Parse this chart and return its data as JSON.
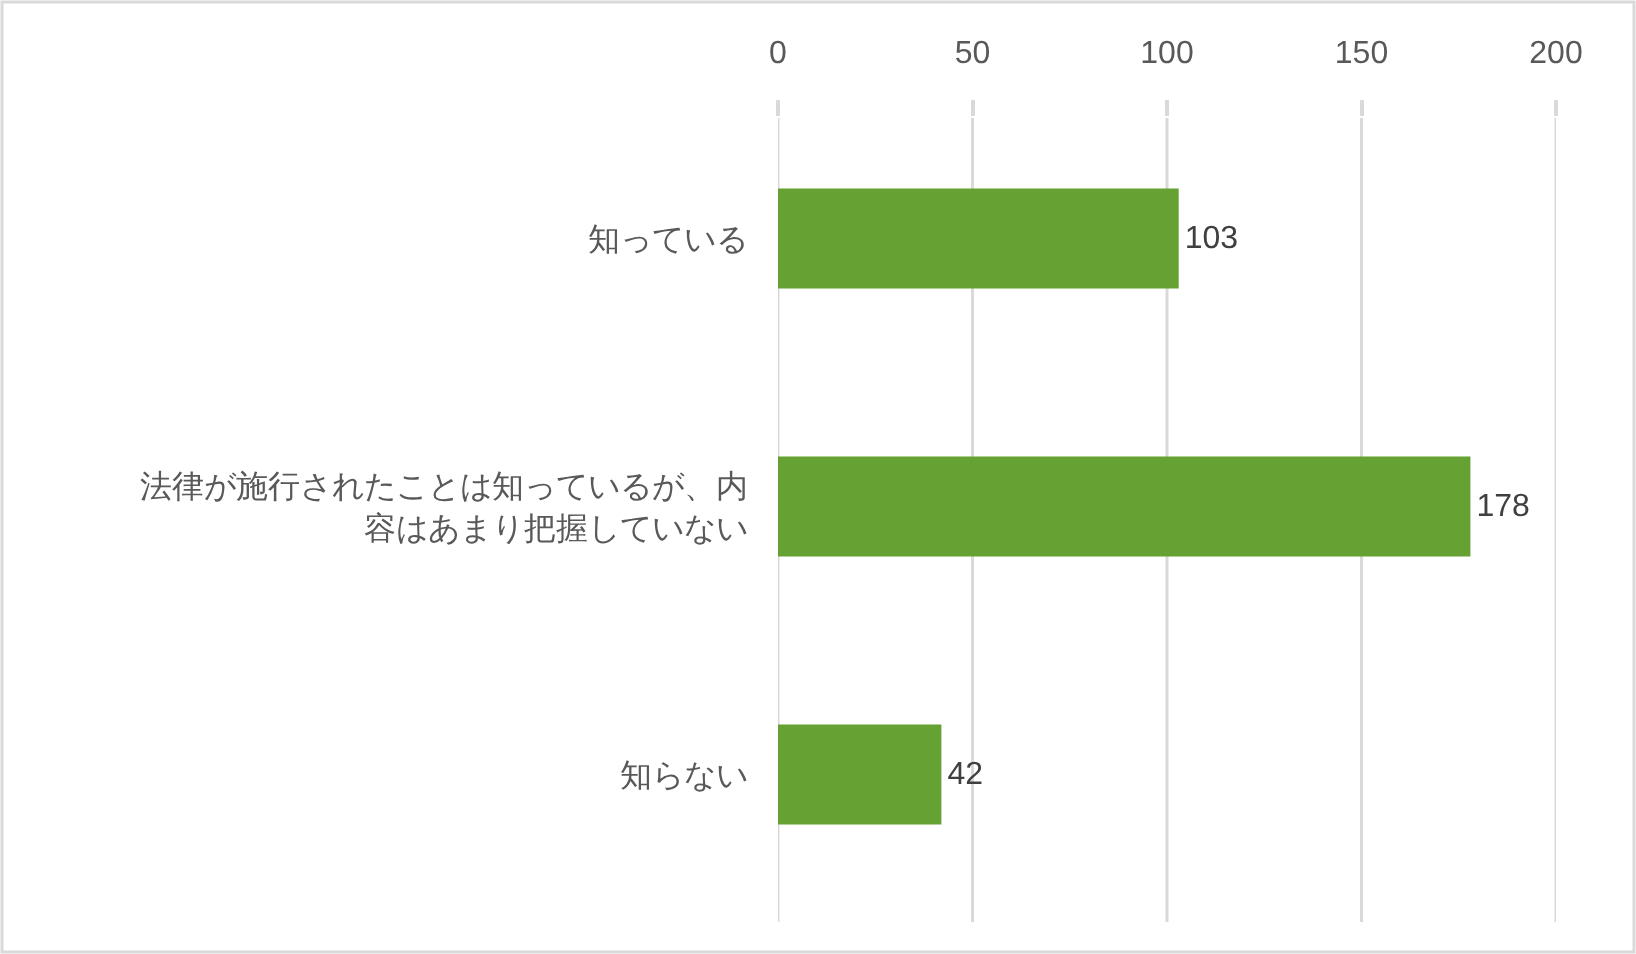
{
  "chart_data": {
    "type": "bar",
    "orientation": "horizontal",
    "categories": [
      "知っている",
      "法律が施行されたことは知っているが、内容はあまり把握していない",
      "知らない"
    ],
    "values": [
      103,
      178,
      42
    ],
    "color": "#65a133",
    "xlim": [
      0,
      200
    ],
    "xticks": [
      0,
      50,
      100,
      150,
      200
    ],
    "grid": "x",
    "data_labels": true
  }
}
